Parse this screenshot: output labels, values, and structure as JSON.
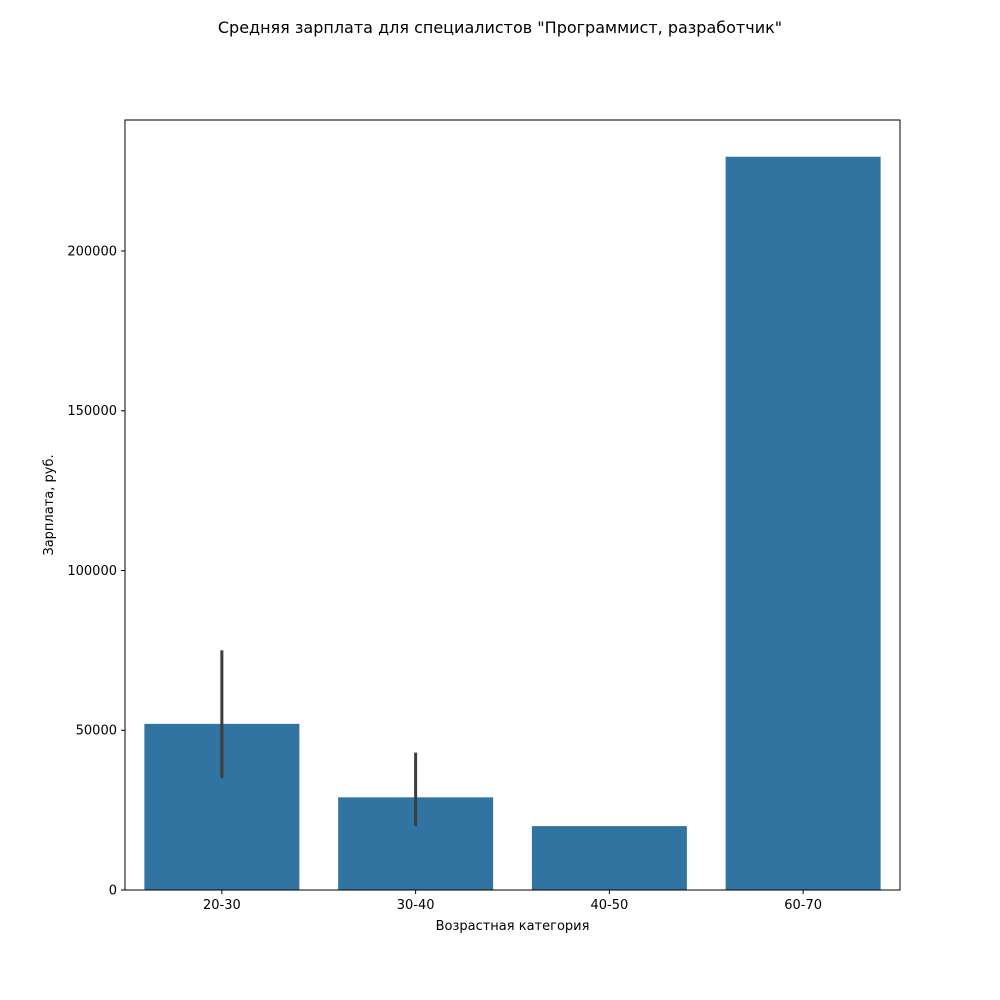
{
  "chart_data": {
    "type": "bar",
    "title": "Средняя зарплата для специалистов \"Программист, разработчик\"",
    "xlabel": "Возрастная категория",
    "ylabel": "Зарплата, руб.",
    "categories": [
      "20-30",
      "30-40",
      "40-50",
      "60-70"
    ],
    "values": [
      52000,
      29000,
      20000,
      229500
    ],
    "error_bars": [
      {
        "low": 35000,
        "high": 75000
      },
      {
        "low": 20000,
        "high": 43000
      },
      null,
      null
    ],
    "ylim": [
      0,
      241000
    ],
    "yticks": [
      0,
      50000,
      100000,
      150000,
      200000
    ],
    "ytick_labels": [
      "0",
      "50000",
      "100000",
      "150000",
      "200000"
    ],
    "bar_color": "#3274a1",
    "errorbar_color": "#3d3d3d",
    "grid": false,
    "legend": "none"
  }
}
